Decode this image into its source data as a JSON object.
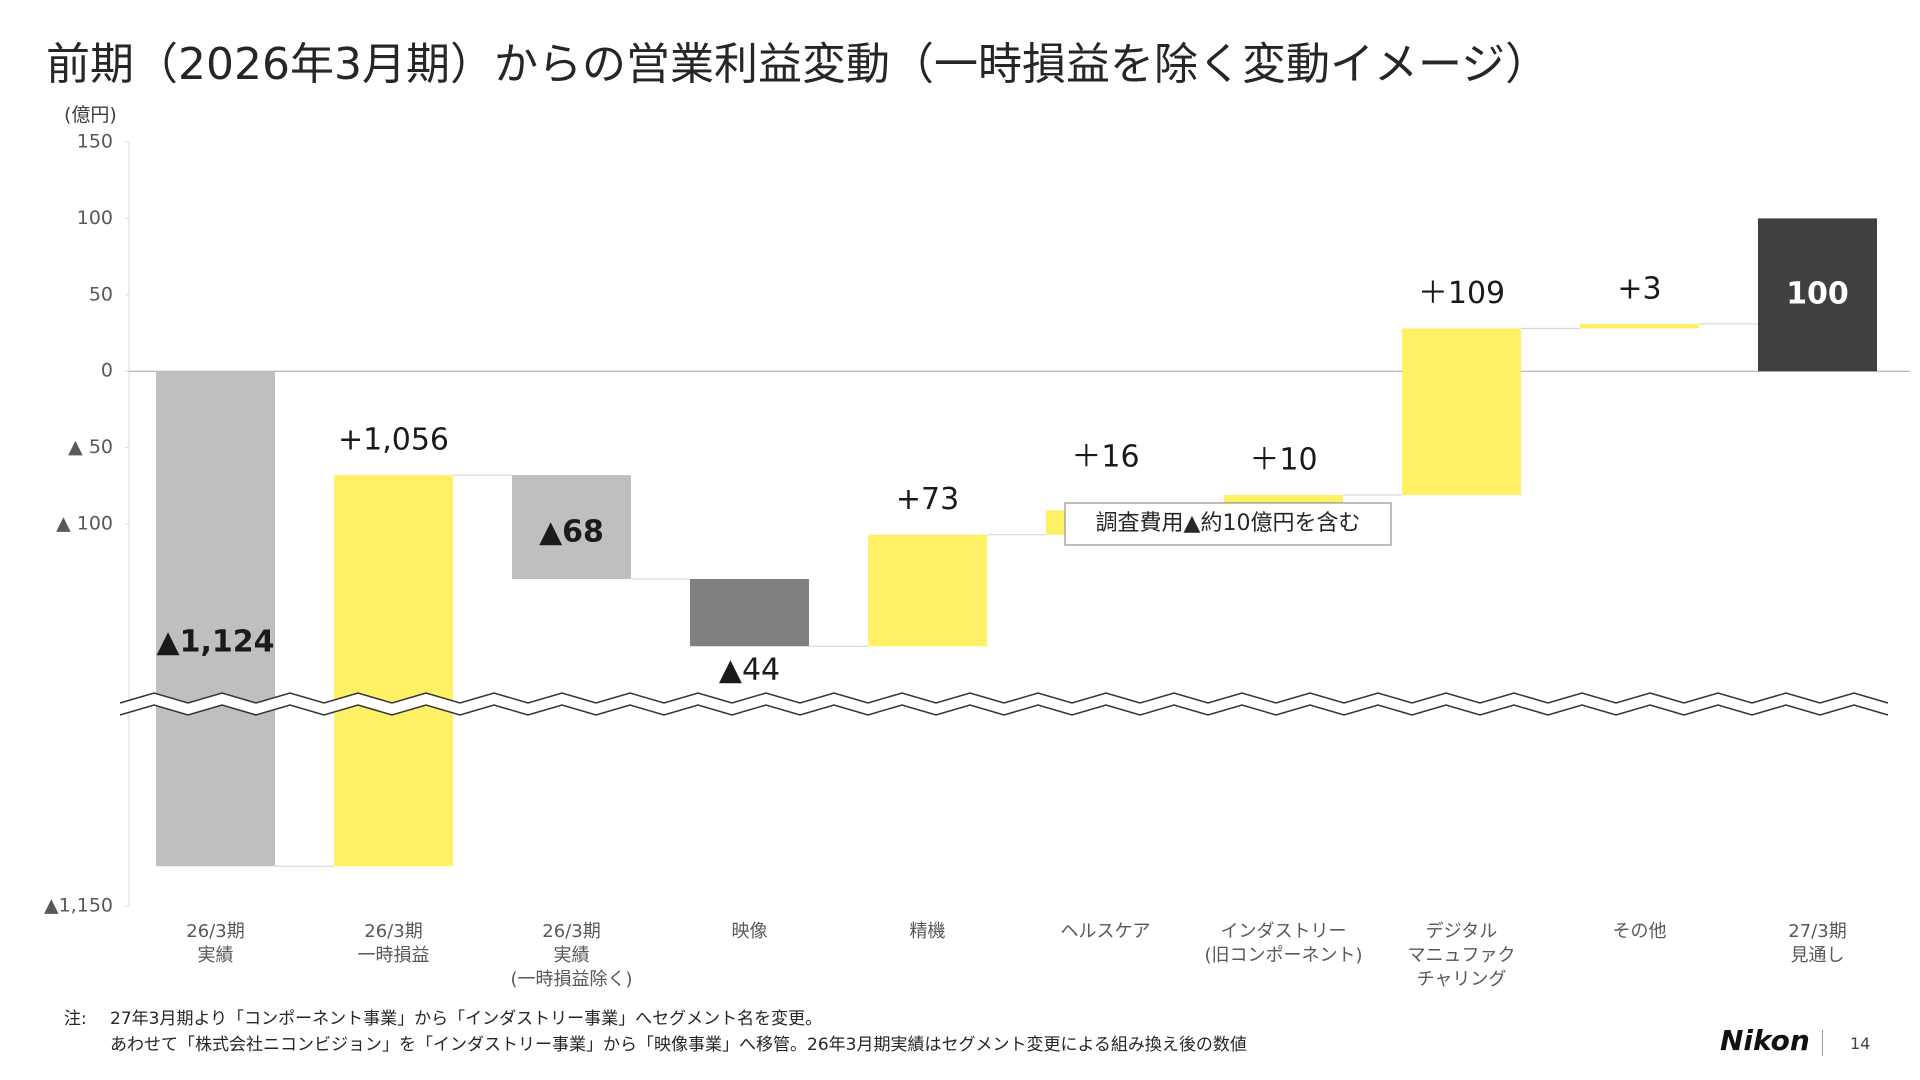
{
  "title": "前期（2026年3月期）からの営業利益変動（一時損益を除く変動イメージ）",
  "footnote": {
    "prefix": "注:",
    "lines": [
      "27年3月期より「コンポーネント事業」から「インダストリー事業」へセグメント名を変更。",
      "あわせて「株式会社ニコンビジョン」を「インダストリー事業」から「映像事業」へ移管。26年3月期実績はセグメント変更による組み換え後の数値"
    ]
  },
  "logo": "Nikon",
  "page_number": "14",
  "chart_data": {
    "type": "waterfall",
    "y_axis_label": "(億円)",
    "categories": [
      "26/3期\n実績",
      "26/3期\n一時損益",
      "26/3期\n実績\n(一時損益除く)",
      "映像",
      "精機",
      "ヘルスケア",
      "インダストリー\n(旧コンポーネント)",
      "デジタル\nマニュファク\nチャリング",
      "その他",
      "27/3期\n見通し"
    ],
    "values": [
      -1124,
      1056,
      -68,
      -44,
      73,
      16,
      10,
      109,
      3,
      100
    ],
    "value_labels": [
      "▲1,124",
      "+1,056",
      "▲68",
      "▲44",
      "+73",
      "＋16",
      "＋10",
      "＋109",
      "+3",
      "100"
    ],
    "colors": [
      "#bfbfbf",
      "#fff066",
      "#bfbfbf",
      "#808080",
      "#fff066",
      "#fff066",
      "#fff066",
      "#fff066",
      "#fff066",
      "#404040"
    ],
    "ylim": [
      -1150,
      150
    ],
    "yticks": [
      150,
      100,
      50,
      0,
      {
        "value": -50,
        "label": "▲ 50"
      },
      {
        "value": -100,
        "label": "▲ 100"
      },
      {
        "value": -1150,
        "label": "▲1,150"
      }
    ],
    "axis_break": true,
    "annotation": "調査費用▲約10億円を含む"
  }
}
